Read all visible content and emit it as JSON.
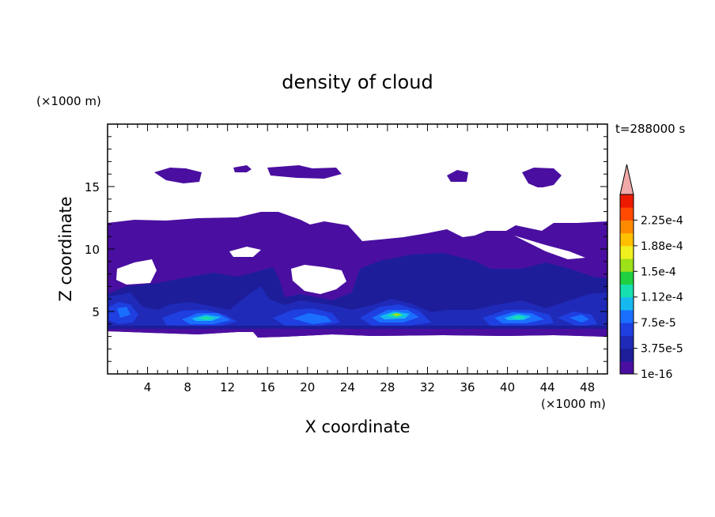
{
  "chart_data": {
    "type": "heatmap",
    "title": "density of cloud",
    "xlabel": "X coordinate",
    "ylabel": "Z coordinate",
    "x_unit": "(×1000 m)",
    "y_unit": "(×1000 m)",
    "time_label": "t=288000 s",
    "xlim": [
      0,
      50
    ],
    "ylim": [
      0,
      20
    ],
    "x_ticks": [
      4,
      8,
      12,
      16,
      20,
      24,
      28,
      32,
      36,
      40,
      44,
      48
    ],
    "y_ticks": [
      5,
      10,
      15
    ],
    "colorbar": {
      "labels": [
        "1e-16",
        "3.75e-5",
        "7.5e-5",
        "1.12e-4",
        "1.5e-4",
        "1.88e-4",
        "2.25e-4"
      ],
      "extend": "max",
      "colors": [
        "#4a0fa0",
        "#1d1d9a",
        "#1f2ab8",
        "#1f3fe0",
        "#1a6fff",
        "#16b8f0",
        "#16e0b0",
        "#20d040",
        "#9ee01a",
        "#f0f020",
        "#ffc000",
        "#ff8a00",
        "#ff4a00",
        "#ee1a00",
        "#f0a8a8"
      ]
    },
    "regions": [
      {
        "level": 0,
        "description": "base cloud layer",
        "x": [
          0,
          50
        ],
        "z": [
          3.2,
          12.3
        ]
      },
      {
        "level": 0,
        "description": "upper patches",
        "x": [
          0,
          50
        ],
        "z": [
          12.3,
          16.5
        ]
      },
      {
        "level": 2,
        "description": "cores",
        "x_centers": [
          3,
          10,
          19,
          28.5,
          40,
          46
        ],
        "z": [
          3.8,
          5.8
        ]
      },
      {
        "level": 5,
        "description": "max cores",
        "x_centers": [
          10,
          28.5,
          40
        ],
        "z": [
          4.5,
          5.0
        ]
      }
    ]
  }
}
